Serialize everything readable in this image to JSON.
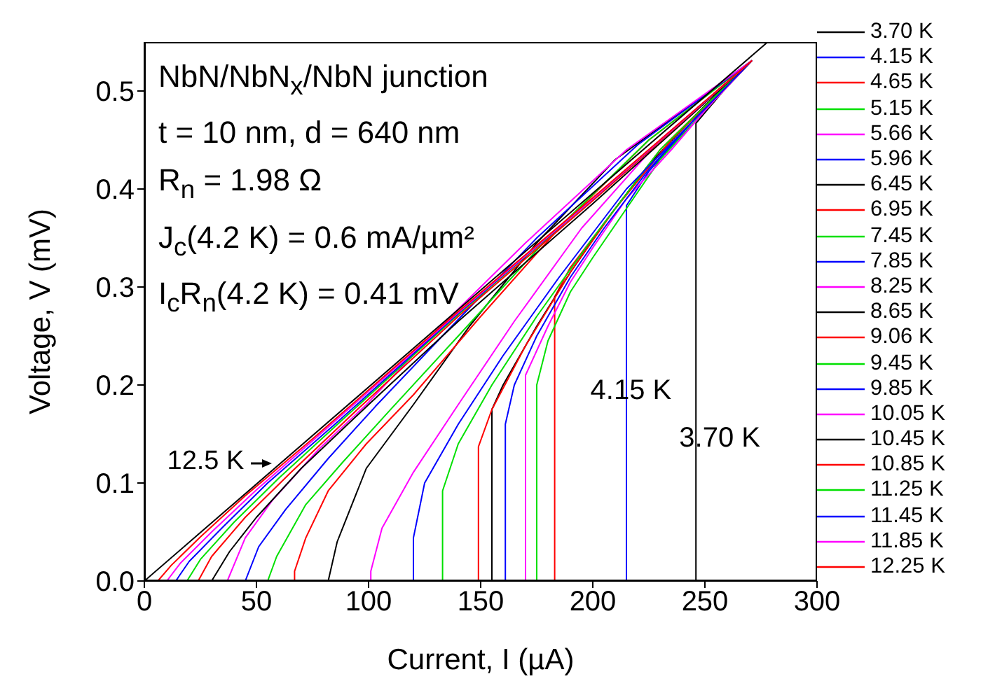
{
  "chart_data": {
    "type": "line",
    "xlabel": "Current, I (µA)",
    "ylabel": "Voltage, V (mV)",
    "xlim": [
      0,
      300
    ],
    "ylim": [
      0,
      0.55
    ],
    "xticks": [
      0,
      50,
      100,
      150,
      200,
      250,
      300
    ],
    "yticks": [
      {
        "value": 0,
        "label": "0.0"
      },
      0.1,
      0.2,
      0.3,
      0.4,
      0.5
    ],
    "legend": "right",
    "grid": false,
    "annotations": [
      "NbN/NbN$_{x}$/NbN junction",
      "t = 10 nm, d = 640 nm",
      "R$_{n}$ = 1.98 Ω",
      "J$_{c}$(4.2 K) = 0.6 mA/µm²",
      "I$_{c}$R$_{n}$(4.2 K) = 0.41 mV",
      {
        "text": "12.5 K",
        "x": 57,
        "y": 0.12
      },
      {
        "text": "4.15 K",
        "x": 217,
        "y": 0.193
      },
      {
        "text": "3.70 K",
        "x": 246,
        "y": 0.145
      }
    ],
    "series": [
      {
        "name": "3.70 K",
        "color": "#000000",
        "x": [
          0,
          246,
          246,
          260,
          271
        ],
        "values": [
          0,
          0,
          0.467,
          0.505,
          0.531
        ]
      },
      {
        "name": "4.15 K",
        "color": "#0000ff",
        "x": [
          0,
          215,
          215,
          225,
          240,
          255,
          271
        ],
        "values": [
          0,
          0,
          0.383,
          0.418,
          0.457,
          0.497,
          0.531
        ]
      },
      {
        "name": "4.65 K",
        "color": "#ff0000",
        "x": [
          0,
          183,
          183,
          190,
          200,
          215,
          230,
          250,
          271
        ],
        "values": [
          0,
          0,
          0.29,
          0.32,
          0.35,
          0.395,
          0.44,
          0.485,
          0.531
        ]
      },
      {
        "name": "5.15 K",
        "color": "#00e000",
        "x": [
          0,
          175,
          175,
          180,
          190,
          200,
          215,
          230,
          250,
          271
        ],
        "values": [
          0,
          0,
          0.2,
          0.245,
          0.295,
          0.33,
          0.38,
          0.43,
          0.48,
          0.531
        ]
      },
      {
        "name": "5.66 K",
        "color": "#ff00ff",
        "x": [
          0,
          170,
          170,
          180,
          190,
          200,
          215,
          235,
          250,
          271
        ],
        "values": [
          0,
          0,
          0.21,
          0.26,
          0.305,
          0.34,
          0.39,
          0.44,
          0.48,
          0.531
        ]
      },
      {
        "name": "5.96 K",
        "color": "#0000ff",
        "x": [
          0,
          161,
          161,
          165,
          175,
          190,
          205,
          225,
          250,
          271
        ],
        "values": [
          0,
          0,
          0.16,
          0.2,
          0.25,
          0.31,
          0.36,
          0.42,
          0.483,
          0.531
        ]
      },
      {
        "name": "6.45 K",
        "color": "#000000",
        "x": [
          0,
          155,
          155,
          160,
          175,
          190,
          205,
          225,
          250,
          271
        ],
        "values": [
          0,
          0,
          0.175,
          0.2,
          0.26,
          0.315,
          0.365,
          0.425,
          0.485,
          0.531
        ]
      },
      {
        "name": "6.95 K",
        "color": "#ff0000",
        "x": [
          0,
          149,
          149,
          155,
          170,
          190,
          210,
          235,
          271
        ],
        "values": [
          0,
          0,
          0.137,
          0.175,
          0.24,
          0.315,
          0.38,
          0.45,
          0.531
        ]
      },
      {
        "name": "7.45 K",
        "color": "#00e000",
        "x": [
          0,
          133,
          133,
          140,
          155,
          175,
          200,
          230,
          271
        ],
        "values": [
          0,
          0,
          0.092,
          0.14,
          0.2,
          0.27,
          0.35,
          0.44,
          0.531
        ]
      },
      {
        "name": "7.85 K",
        "color": "#0000ff",
        "x": [
          0,
          120,
          120,
          125,
          140,
          160,
          185,
          215,
          245,
          271
        ],
        "values": [
          0,
          0,
          0.044,
          0.1,
          0.16,
          0.23,
          0.31,
          0.4,
          0.47,
          0.531
        ]
      },
      {
        "name": "8.25 K",
        "color": "#ff00ff",
        "x": [
          0,
          101,
          101,
          106,
          120,
          140,
          165,
          195,
          230,
          271
        ],
        "values": [
          0,
          0,
          0.01,
          0.054,
          0.111,
          0.18,
          0.265,
          0.36,
          0.45,
          0.531
        ]
      },
      {
        "name": "8.65 K",
        "color": "#000000",
        "x": [
          0,
          82,
          86,
          99,
          120,
          145,
          175,
          210,
          271
        ],
        "values": [
          0,
          0,
          0.04,
          0.115,
          0.18,
          0.26,
          0.345,
          0.43,
          0.531
        ]
      },
      {
        "name": "9.06 K",
        "color": "#ff0000",
        "x": [
          0,
          67,
          67,
          72,
          82,
          99,
          120,
          150,
          185,
          225,
          271
        ],
        "values": [
          0,
          0,
          0.01,
          0.044,
          0.092,
          0.14,
          0.19,
          0.27,
          0.36,
          0.45,
          0.531
        ]
      },
      {
        "name": "9.45 K",
        "color": "#00e000",
        "x": [
          0,
          55,
          59,
          72,
          88,
          109,
          140,
          180,
          225,
          271
        ],
        "values": [
          0,
          0,
          0.025,
          0.078,
          0.12,
          0.173,
          0.25,
          0.35,
          0.45,
          0.531
        ]
      },
      {
        "name": "9.85 K",
        "color": "#0000ff",
        "x": [
          0,
          45,
          51,
          63,
          82,
          103,
          135,
          175,
          220,
          271
        ],
        "values": [
          0,
          0,
          0.035,
          0.073,
          0.125,
          0.178,
          0.255,
          0.35,
          0.445,
          0.531
        ]
      },
      {
        "name": "10.05 K",
        "color": "#ff00ff",
        "x": [
          0,
          37,
          45,
          57,
          78,
          99,
          130,
          170,
          215,
          271
        ],
        "values": [
          0,
          0,
          0.044,
          0.082,
          0.135,
          0.18,
          0.255,
          0.345,
          0.44,
          0.531
        ]
      },
      {
        "name": "10.45 K",
        "color": "#000000",
        "x": [
          0,
          30,
          38,
          50,
          70,
          100,
          140,
          200,
          271
        ],
        "values": [
          0,
          0,
          0.03,
          0.065,
          0.115,
          0.18,
          0.265,
          0.385,
          0.531
        ]
      },
      {
        "name": "10.85 K",
        "color": "#ff0000",
        "x": [
          0,
          24,
          30,
          45,
          65,
          95,
          140,
          200,
          271
        ],
        "values": [
          0,
          0,
          0.025,
          0.065,
          0.11,
          0.175,
          0.27,
          0.388,
          0.531
        ]
      },
      {
        "name": "11.25 K",
        "color": "#00e000",
        "x": [
          0,
          19,
          25,
          40,
          60,
          90,
          140,
          200,
          271
        ],
        "values": [
          0,
          0,
          0.022,
          0.06,
          0.105,
          0.168,
          0.272,
          0.39,
          0.531
        ]
      },
      {
        "name": "11.45 K",
        "color": "#0000ff",
        "x": [
          0,
          14,
          20,
          35,
          55,
          85,
          140,
          200,
          271
        ],
        "values": [
          0,
          0,
          0.02,
          0.055,
          0.1,
          0.16,
          0.273,
          0.39,
          0.531
        ]
      },
      {
        "name": "11.85 K",
        "color": "#ff00ff",
        "x": [
          0,
          10,
          16,
          30,
          50,
          80,
          140,
          200,
          271
        ],
        "values": [
          0,
          0,
          0.018,
          0.05,
          0.093,
          0.153,
          0.274,
          0.39,
          0.531
        ]
      },
      {
        "name": "12.25 K",
        "color": "#ff0000",
        "x": [
          0,
          6,
          12,
          25,
          45,
          75,
          140,
          200,
          271
        ],
        "values": [
          0,
          0,
          0.016,
          0.045,
          0.087,
          0.145,
          0.275,
          0.391,
          0.531
        ]
      },
      {
        "color": "#000000",
        "x": [
          0,
          278
        ],
        "values": [
          0,
          0.55
        ]
      }
    ]
  }
}
